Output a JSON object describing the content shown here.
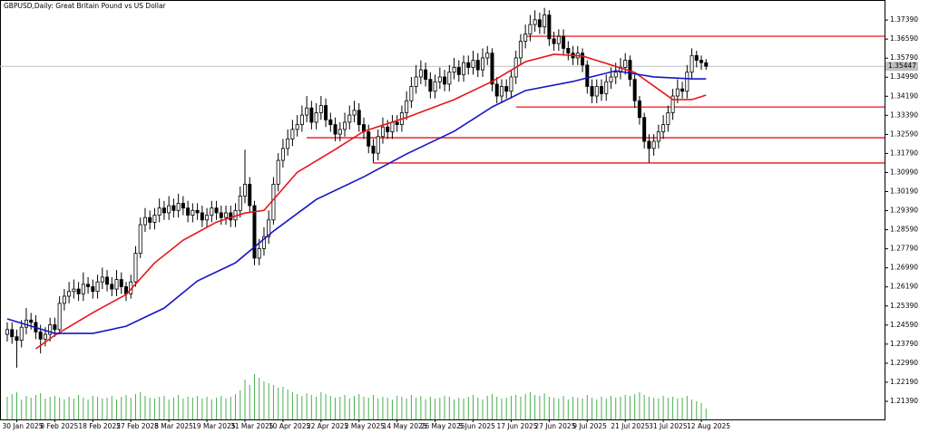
{
  "chart_data": {
    "type": "candlestick",
    "title": "GBPUSD,Daily:  Great Britain Pound vs US Dollar",
    "categories": [
      null,
      null,
      "30 Jan 2025",
      null,
      null,
      null,
      null,
      null,
      null,
      null,
      "8 Feb 2025",
      null,
      null,
      null,
      null,
      null,
      null,
      null,
      "18 Feb 2025",
      null,
      null,
      null,
      null,
      null,
      null,
      null,
      "27 Feb 2025",
      null,
      null,
      null,
      null,
      null,
      null,
      null,
      "8 Mar 2025",
      null,
      null,
      null,
      null,
      null,
      null,
      null,
      "19 Mar 2025",
      null,
      null,
      null,
      null,
      null,
      null,
      null,
      "31 Mar 2025",
      null,
      null,
      null,
      null,
      null,
      null,
      null,
      "10 Apr 2025",
      null,
      null,
      null,
      null,
      null,
      null,
      null,
      "22 Apr 2025",
      null,
      null,
      null,
      null,
      null,
      null,
      null,
      "2 May 2025",
      null,
      null,
      null,
      null,
      null,
      null,
      null,
      "14 May 2025",
      null,
      null,
      null,
      null,
      null,
      null,
      null,
      "26 May 2025",
      null,
      null,
      null,
      null,
      null,
      null,
      null,
      "5 Jun 2025",
      null,
      null,
      null,
      null,
      null,
      null,
      null,
      "17 Jun 2025",
      null,
      null,
      null,
      null,
      null,
      null,
      null,
      "27 Jun 2025",
      null,
      null,
      null,
      null,
      null,
      null,
      null,
      "9 Jul 2025",
      null,
      null,
      null,
      null,
      null,
      null,
      null,
      "21 Jul 2025",
      null,
      null,
      null,
      null,
      null,
      null,
      null,
      "31 Jul 2025",
      null,
      null,
      null,
      null,
      null,
      null,
      null,
      "12 Aug 2025",
      null
    ],
    "open": [
      1.242,
      1.244,
      1.241,
      1.2395,
      1.245,
      1.248,
      1.247,
      1.243,
      1.24,
      1.242,
      1.246,
      1.244,
      1.255,
      1.258,
      1.26,
      1.261,
      1.259,
      1.263,
      1.262,
      1.26,
      1.264,
      1.266,
      1.263,
      1.261,
      1.265,
      1.262,
      1.259,
      1.264,
      1.276,
      1.288,
      1.291,
      1.289,
      1.292,
      1.295,
      1.293,
      1.296,
      1.294,
      1.297,
      1.295,
      1.292,
      1.294,
      1.293,
      1.29,
      1.292,
      1.295,
      1.293,
      1.291,
      1.293,
      1.29,
      1.294,
      1.3,
      1.305,
      1.296,
      1.274,
      1.278,
      1.283,
      1.29,
      1.305,
      1.315,
      1.32,
      1.324,
      1.328,
      1.33,
      1.334,
      1.337,
      1.331,
      1.335,
      1.338,
      1.332,
      1.33,
      1.326,
      1.328,
      1.331,
      1.334,
      1.336,
      1.33,
      1.327,
      1.321,
      1.318,
      1.325,
      1.329,
      1.327,
      1.331,
      1.33,
      1.335,
      1.34,
      1.346,
      1.35,
      1.353,
      1.349,
      1.344,
      1.348,
      1.35,
      1.347,
      1.352,
      1.354,
      1.351,
      1.356,
      1.354,
      1.357,
      1.353,
      1.358,
      1.36,
      1.347,
      1.342,
      1.346,
      1.344,
      1.35,
      1.358,
      1.365,
      1.368,
      1.372,
      1.374,
      1.371,
      1.376,
      1.366,
      1.364,
      1.367,
      1.362,
      1.36,
      1.358,
      1.36,
      1.355,
      1.346,
      1.342,
      1.346,
      1.343,
      1.348,
      1.35,
      1.352,
      1.354,
      1.357,
      1.349,
      1.34,
      1.333,
      1.323,
      1.32,
      1.323,
      1.327,
      1.33,
      1.335,
      1.342,
      1.345,
      1.344,
      1.352,
      1.359,
      1.357,
      1.356
    ],
    "high": [
      1.247,
      1.247,
      1.244,
      1.248,
      1.253,
      1.251,
      1.25,
      1.246,
      1.245,
      1.249,
      1.249,
      1.258,
      1.261,
      1.264,
      1.265,
      1.264,
      1.268,
      1.266,
      1.265,
      1.267,
      1.27,
      1.269,
      1.266,
      1.269,
      1.268,
      1.264,
      1.267,
      1.279,
      1.291,
      1.295,
      1.294,
      1.295,
      1.299,
      1.298,
      1.3,
      1.299,
      1.301,
      1.3,
      1.298,
      1.297,
      1.297,
      1.296,
      1.295,
      1.298,
      1.298,
      1.296,
      1.296,
      1.296,
      1.297,
      1.304,
      1.3195,
      1.308,
      1.298,
      1.282,
      1.287,
      1.294,
      1.308,
      1.318,
      1.324,
      1.328,
      1.332,
      1.334,
      1.338,
      1.342,
      1.34,
      1.339,
      1.342,
      1.341,
      1.335,
      1.333,
      1.331,
      1.335,
      1.338,
      1.34,
      1.339,
      1.333,
      1.33,
      1.324,
      1.328,
      1.333,
      1.332,
      1.334,
      1.334,
      1.338,
      1.344,
      1.35,
      1.355,
      1.357,
      1.356,
      1.352,
      1.351,
      1.354,
      1.353,
      1.355,
      1.358,
      1.357,
      1.359,
      1.359,
      1.361,
      1.36,
      1.362,
      1.363,
      1.362,
      1.35,
      1.349,
      1.349,
      1.353,
      1.361,
      1.368,
      1.372,
      1.376,
      1.378,
      1.377,
      1.379,
      1.378,
      1.369,
      1.37,
      1.37,
      1.365,
      1.363,
      1.363,
      1.362,
      1.357,
      1.349,
      1.349,
      1.349,
      1.351,
      1.354,
      1.356,
      1.358,
      1.36,
      1.359,
      1.351,
      1.342,
      1.335,
      1.326,
      1.326,
      1.33,
      1.334,
      1.338,
      1.345,
      1.349,
      1.348,
      1.355,
      1.362,
      1.361,
      1.359,
      1.3575
    ],
    "low": [
      1.239,
      1.238,
      1.228,
      1.2365,
      1.242,
      1.244,
      1.24,
      1.234,
      1.237,
      1.239,
      1.241,
      1.242,
      1.252,
      1.255,
      1.257,
      1.256,
      1.256,
      1.259,
      1.257,
      1.257,
      1.261,
      1.26,
      1.258,
      1.258,
      1.259,
      1.256,
      1.257,
      1.262,
      1.274,
      1.285,
      1.286,
      1.286,
      1.289,
      1.29,
      1.29,
      1.291,
      1.291,
      1.292,
      1.289,
      1.289,
      1.29,
      1.287,
      1.287,
      1.289,
      1.29,
      1.288,
      1.288,
      1.287,
      1.287,
      1.291,
      1.297,
      1.293,
      1.271,
      1.271,
      1.275,
      1.28,
      1.288,
      1.302,
      1.312,
      1.317,
      1.321,
      1.325,
      1.327,
      1.331,
      1.328,
      1.328,
      1.332,
      1.329,
      1.327,
      1.323,
      1.323,
      1.325,
      1.328,
      1.331,
      1.327,
      1.324,
      1.318,
      1.314,
      1.315,
      1.322,
      1.324,
      1.324,
      1.327,
      1.327,
      1.332,
      1.337,
      1.343,
      1.347,
      1.346,
      1.341,
      1.341,
      1.345,
      1.344,
      1.344,
      1.349,
      1.348,
      1.348,
      1.351,
      1.351,
      1.35,
      1.35,
      1.355,
      1.344,
      1.339,
      1.339,
      1.341,
      1.341,
      1.347,
      1.355,
      1.362,
      1.365,
      1.369,
      1.368,
      1.368,
      1.363,
      1.361,
      1.361,
      1.359,
      1.357,
      1.355,
      1.355,
      1.352,
      1.343,
      1.339,
      1.339,
      1.34,
      1.34,
      1.345,
      1.347,
      1.349,
      1.351,
      1.346,
      1.337,
      1.33,
      1.32,
      1.314,
      1.317,
      1.32,
      1.324,
      1.327,
      1.332,
      1.339,
      1.341,
      1.341,
      1.349,
      1.354,
      1.353,
      1.353
    ],
    "close": [
      1.244,
      1.241,
      1.2395,
      1.245,
      1.248,
      1.247,
      1.243,
      1.24,
      1.242,
      1.246,
      1.244,
      1.255,
      1.258,
      1.26,
      1.261,
      1.259,
      1.263,
      1.262,
      1.26,
      1.264,
      1.266,
      1.263,
      1.261,
      1.265,
      1.262,
      1.259,
      1.264,
      1.276,
      1.288,
      1.291,
      1.289,
      1.292,
      1.295,
      1.293,
      1.296,
      1.294,
      1.297,
      1.295,
      1.292,
      1.294,
      1.293,
      1.29,
      1.292,
      1.295,
      1.293,
      1.291,
      1.293,
      1.29,
      1.294,
      1.3,
      1.305,
      1.296,
      1.274,
      1.278,
      1.283,
      1.29,
      1.305,
      1.315,
      1.32,
      1.324,
      1.328,
      1.33,
      1.334,
      1.337,
      1.331,
      1.335,
      1.338,
      1.332,
      1.33,
      1.326,
      1.328,
      1.331,
      1.334,
      1.336,
      1.33,
      1.327,
      1.321,
      1.318,
      1.325,
      1.329,
      1.327,
      1.331,
      1.33,
      1.335,
      1.34,
      1.346,
      1.35,
      1.353,
      1.349,
      1.344,
      1.348,
      1.35,
      1.347,
      1.352,
      1.354,
      1.351,
      1.356,
      1.354,
      1.357,
      1.353,
      1.358,
      1.36,
      1.347,
      1.342,
      1.346,
      1.344,
      1.35,
      1.358,
      1.365,
      1.368,
      1.372,
      1.374,
      1.371,
      1.376,
      1.366,
      1.364,
      1.367,
      1.362,
      1.36,
      1.358,
      1.36,
      1.355,
      1.346,
      1.342,
      1.346,
      1.343,
      1.348,
      1.35,
      1.352,
      1.354,
      1.357,
      1.349,
      1.34,
      1.333,
      1.323,
      1.32,
      1.323,
      1.327,
      1.33,
      1.335,
      1.342,
      1.345,
      1.344,
      1.352,
      1.359,
      1.357,
      1.356,
      1.35447
    ],
    "up_color": "#ffffff",
    "down_color": "#000000",
    "outline_color": "#000000",
    "volume": [
      25,
      28,
      30,
      22,
      26,
      24,
      27,
      29,
      23,
      25,
      26,
      24,
      22,
      25,
      23,
      27,
      24,
      22,
      26,
      25,
      23,
      24,
      26,
      22,
      25,
      27,
      24,
      28,
      30,
      26,
      24,
      23,
      25,
      26,
      22,
      24,
      27,
      23,
      25,
      24,
      26,
      23,
      25,
      22,
      24,
      26,
      23,
      25,
      28,
      32,
      44,
      38,
      50,
      46,
      42,
      40,
      38,
      35,
      36,
      33,
      30,
      28,
      26,
      29,
      27,
      25,
      30,
      28,
      26,
      24,
      25,
      27,
      23,
      26,
      28,
      25,
      24,
      27,
      23,
      25,
      24,
      22,
      26,
      25,
      23,
      27,
      24,
      26,
      22,
      25,
      23,
      24,
      26,
      25,
      22,
      24,
      23,
      25,
      27,
      24,
      22,
      26,
      28,
      25,
      23,
      24,
      26,
      27,
      25,
      28,
      30,
      27,
      26,
      29,
      25,
      24,
      23,
      26,
      22,
      25,
      24,
      23,
      27,
      24,
      22,
      25,
      23,
      26,
      24,
      25,
      27,
      26,
      28,
      30,
      27,
      25,
      24,
      23,
      26,
      24,
      25,
      23,
      24,
      26,
      22,
      20,
      18,
      12
    ],
    "volume_color": "#4caf50",
    "lines": [
      {
        "color": "#e8141b",
        "x": [
          6,
          10,
          18,
          25,
          31,
          37,
          44,
          50,
          54,
          61,
          69,
          75,
          84,
          94,
          102,
          109,
          115,
          121,
          126,
          132,
          140,
          144,
          147
        ],
        "values": [
          1.2359,
          1.2416,
          1.2511,
          1.2587,
          1.272,
          1.2815,
          1.2891,
          1.2929,
          1.294,
          1.31,
          1.3196,
          1.3272,
          1.333,
          1.3405,
          1.3481,
          1.3564,
          1.3595,
          1.3588,
          1.3557,
          1.3519,
          1.3405,
          1.3405,
          1.3424
        ]
      },
      {
        "color": "#1515c8",
        "x": [
          0,
          10,
          18,
          25,
          33,
          40,
          48,
          56,
          65,
          75,
          84,
          94,
          102,
          109,
          119,
          128,
          136,
          144,
          147
        ],
        "values": [
          1.2485,
          1.2424,
          1.2424,
          1.2454,
          1.253,
          1.2644,
          1.272,
          1.2853,
          1.2986,
          1.3081,
          1.3177,
          1.3272,
          1.3374,
          1.3443,
          1.3481,
          1.3526,
          1.35,
          1.3492,
          1.3492
        ]
      }
    ],
    "levels": [
      {
        "value": 1.3671,
        "start": 109
      },
      {
        "value": 1.3374,
        "start": 107
      },
      {
        "value": 1.3245,
        "start": 63
      },
      {
        "value": 1.3139,
        "start": 77
      }
    ],
    "level_color": "#e8141b",
    "last_price": {
      "value": 1.35447,
      "label": "1.35447"
    },
    "ylim": [
      1.2063,
      1.3823
    ],
    "yticks": [
      {
        "value": 1.2139,
        "label": "1.21390"
      },
      {
        "value": 1.2219,
        "label": "1.22190"
      },
      {
        "value": 1.2299,
        "label": "1.22990"
      },
      {
        "value": 1.2379,
        "label": "1.23790"
      },
      {
        "value": 1.2459,
        "label": "1.24590"
      },
      {
        "value": 1.2539,
        "label": "1.25390"
      },
      {
        "value": 1.2619,
        "label": "1.26190"
      },
      {
        "value": 1.2699,
        "label": "1.26990"
      },
      {
        "value": 1.2779,
        "label": "1.27790"
      },
      {
        "value": 1.2859,
        "label": "1.28590"
      },
      {
        "value": 1.2939,
        "label": "1.29390"
      },
      {
        "value": 1.3019,
        "label": "1.30190"
      },
      {
        "value": 1.3099,
        "label": "1.30990"
      },
      {
        "value": 1.3179,
        "label": "1.31790"
      },
      {
        "value": 1.3259,
        "label": "1.32590"
      },
      {
        "value": 1.3339,
        "label": "1.33390"
      },
      {
        "value": 1.3419,
        "label": "1.34190"
      },
      {
        "value": 1.3499,
        "label": "1.34990"
      },
      {
        "value": 1.3579,
        "label": "1.35790"
      },
      {
        "value": 1.3659,
        "label": "1.36590"
      },
      {
        "value": 1.3739,
        "label": "1.37390"
      }
    ],
    "grid": false
  }
}
